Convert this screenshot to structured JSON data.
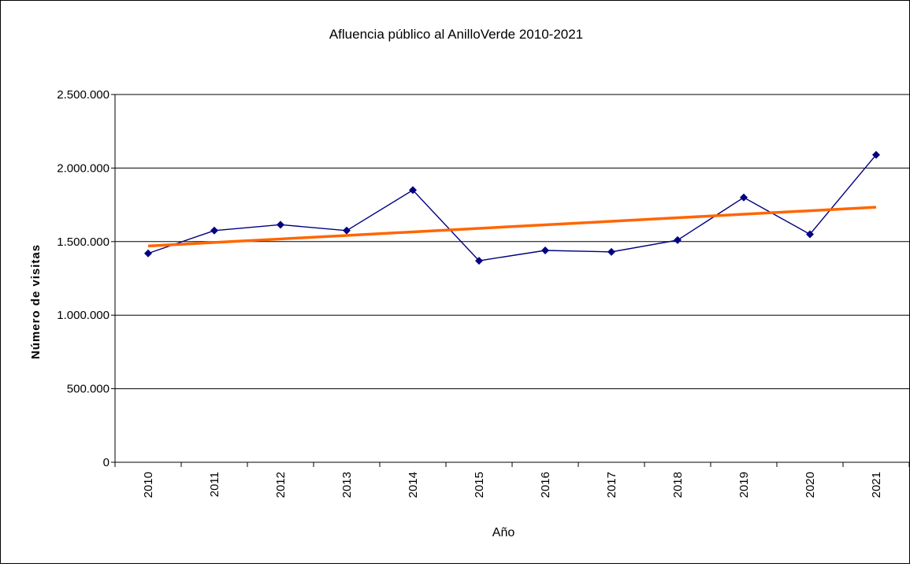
{
  "chart_data": {
    "type": "line",
    "title": "Afluencia público al AnilloVerde 2010-2021",
    "xlabel": "Año",
    "ylabel": "Número de visitas",
    "categories": [
      "2010",
      "2011",
      "2012",
      "2013",
      "2014",
      "2015",
      "2016",
      "2017",
      "2018",
      "2019",
      "2020",
      "2021"
    ],
    "yticks": [
      "0",
      "500.000",
      "1.000.000",
      "1.500.000",
      "2.000.000",
      "2.500.000"
    ],
    "ylim": [
      0,
      2500000
    ],
    "grid": true,
    "series": [
      {
        "values": [
          1420000,
          1575000,
          1615000,
          1575000,
          1850000,
          1370000,
          1440000,
          1430000,
          1510000,
          1800000,
          1550000,
          2090000
        ],
        "color": "#000080",
        "marker": "diamond"
      },
      {
        "type": "trendline",
        "values": [
          1470000,
          1494000,
          1518000,
          1542000,
          1566000,
          1590000,
          1614000,
          1638000,
          1662000,
          1686000,
          1710000,
          1734000
        ],
        "color": "#ff6600"
      }
    ]
  }
}
